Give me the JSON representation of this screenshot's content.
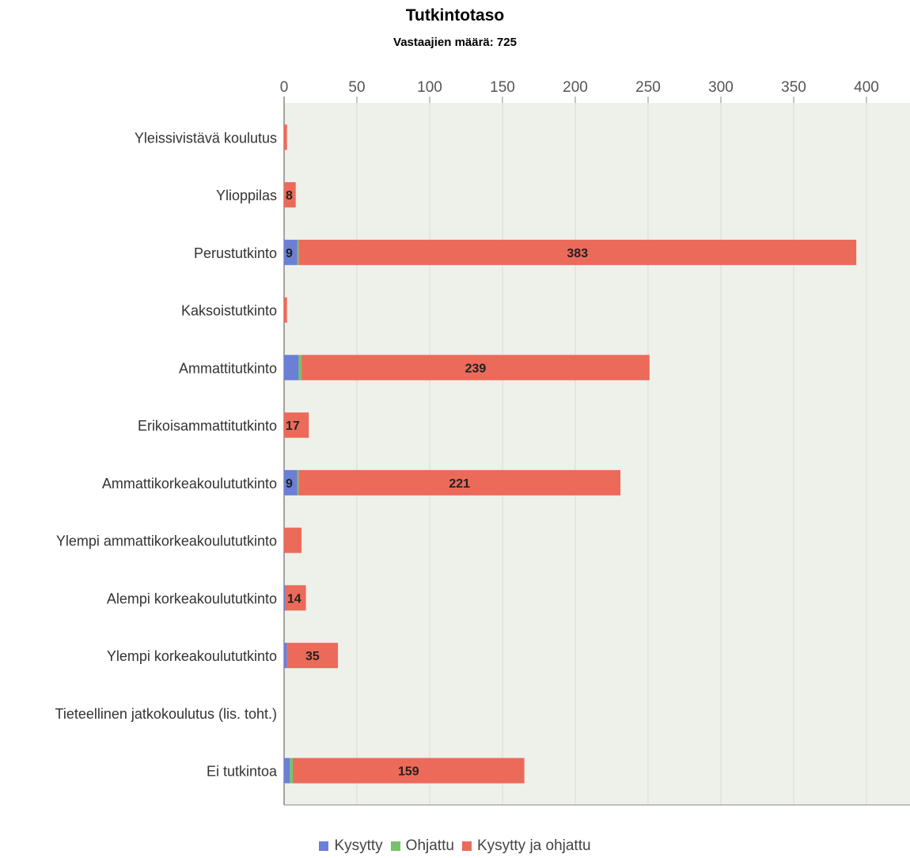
{
  "chart_data": {
    "type": "bar",
    "orientation": "horizontal",
    "stacked": true,
    "title": "Tutkintotaso",
    "subtitle": "Vastaajien määrä: 725",
    "categories": [
      "Yleissivistävä koulutus",
      "Ylioppilas",
      "Perustutkinto",
      "Kaksoistutkinto",
      "Ammattitutkinto",
      "Erikoisammattitutkinto",
      "Ammattikorkeakoulututkinto",
      "Ylempi ammattikorkeakoulututkinto",
      "Alempi korkeakoulututkinto",
      "Ylempi korkeakoulututkinto",
      "Tieteellinen jatkokoulutus (lis. toht.)",
      "Ei tutkintoa"
    ],
    "series": [
      {
        "name": "Kysytty",
        "color": "#6b7fd6",
        "values": [
          0,
          0,
          9,
          0,
          10,
          0,
          9,
          0,
          1,
          2,
          0,
          4
        ],
        "labels": [
          "",
          "",
          "9",
          "",
          "",
          "",
          "9",
          "",
          "",
          "",
          "",
          ""
        ]
      },
      {
        "name": "Ohjattu",
        "color": "#77c26a",
        "values": [
          0,
          0,
          1,
          0,
          2,
          0,
          1,
          0,
          0,
          0,
          0,
          2
        ]
      },
      {
        "name": "Kysytty ja ohjattu",
        "color": "#ec6a5a",
        "values": [
          2,
          8,
          383,
          2,
          239,
          17,
          221,
          12,
          14,
          35,
          0,
          159
        ],
        "labels": [
          "",
          "8",
          "383",
          "",
          "239",
          "17",
          "221",
          "",
          "14",
          "35",
          "",
          "159"
        ]
      }
    ],
    "xticks": [
      "0",
      "50",
      "100",
      "150",
      "200",
      "250",
      "300",
      "350",
      "400"
    ],
    "xlim": [
      0,
      430
    ],
    "axis_position": "top",
    "grid": true,
    "legend": "bottom"
  }
}
